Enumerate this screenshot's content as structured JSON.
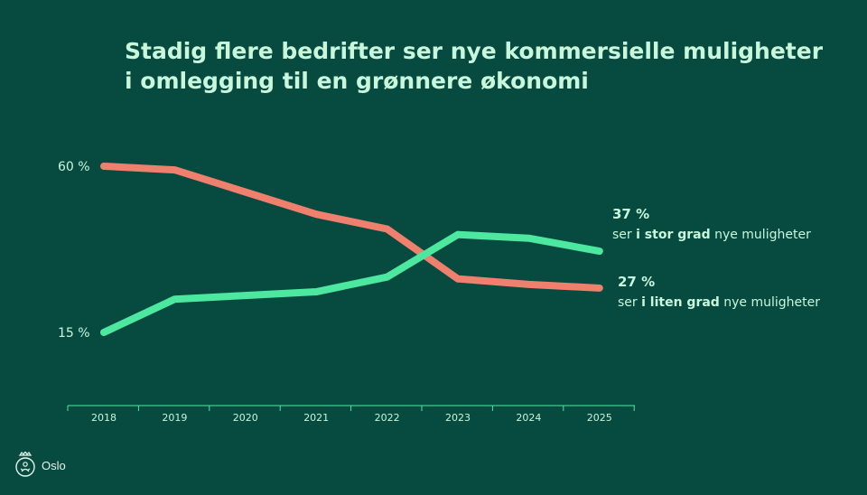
{
  "title_lines": [
    "Stadig flere bedrifter ser nye kommersielle muligheter",
    "i omlegging til en grønnere økonomi"
  ],
  "chart_data": {
    "type": "line",
    "x": [
      "2018",
      "2019",
      "2020",
      "2021",
      "2022",
      "2023",
      "2024",
      "2025"
    ],
    "series": [
      {
        "values": [
          60,
          59,
          53,
          47,
          43,
          29.5,
          28,
          27
        ],
        "color": "#f0806e"
      },
      {
        "values": [
          15,
          24,
          25,
          26,
          30,
          41.5,
          40.5,
          37
        ],
        "color": "#4ce8a0"
      }
    ],
    "yticks": [
      {
        "value": 60,
        "label": "60 %"
      },
      {
        "value": 15,
        "label": "15 %"
      }
    ],
    "ylim": [
      15,
      60
    ],
    "grid": false,
    "end_labels": [
      {
        "value_text": "37 %",
        "pre": "ser ",
        "bold": "i stor grad",
        "post": " nye muligheter"
      },
      {
        "value_text": "27 %",
        "pre": "ser ",
        "bold": "i liten grad",
        "post": " nye muligheter"
      }
    ]
  },
  "colors": {
    "background": "#064a40",
    "text": "#c8f7dc",
    "axis": "#4ce8a0"
  },
  "footer": {
    "logo_text": "Oslo",
    "logo_icon": "oslo-seal-icon"
  }
}
